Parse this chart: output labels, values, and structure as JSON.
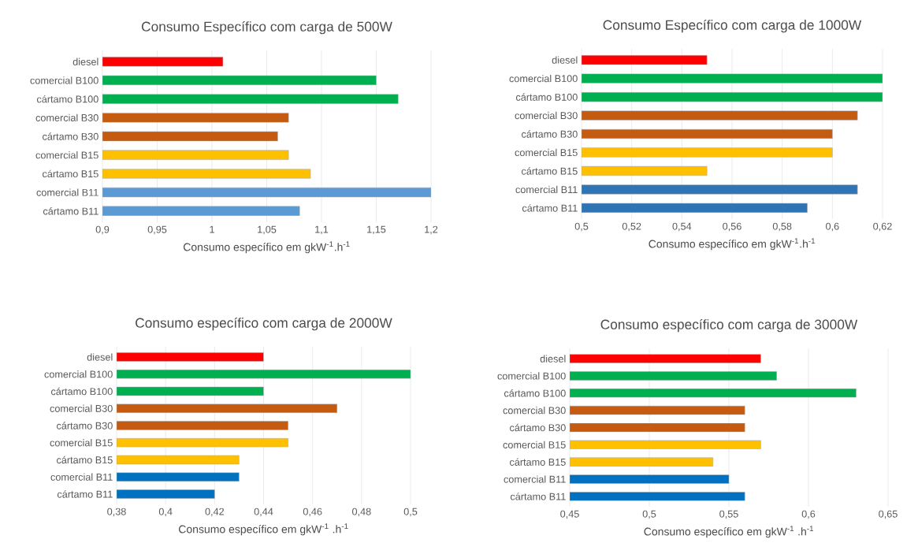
{
  "chart_data": [
    {
      "type": "bar",
      "orientation": "horizontal",
      "title": "Consumo  Específico com carga de 500W",
      "xlabel": "Consumo específico em gkW$^{-1}$.h$^{-1}$",
      "categories": [
        "diesel",
        "comercial B100",
        "cártamo B100",
        "comercial B30",
        "cártamo B30",
        "comercial B15",
        "cártamo B15",
        "comercial B11",
        "cártamo B11"
      ],
      "values": [
        1.01,
        1.15,
        1.17,
        1.07,
        1.06,
        1.07,
        1.09,
        1.2,
        1.08
      ],
      "colors": [
        "#ff0000",
        "#00b050",
        "#00b050",
        "#c55a11",
        "#c55a11",
        "#ffc000",
        "#ffc000",
        "#5b9bd5",
        "#5b9bd5"
      ],
      "xlim": [
        0.9,
        1.2
      ],
      "xticks": [
        {
          "value": 0.9,
          "label": "0,9"
        },
        {
          "value": 0.95,
          "label": "0,95"
        },
        1,
        {
          "value": 1.05,
          "label": "1,05"
        },
        {
          "value": 1.1,
          "label": "1,1"
        },
        {
          "value": 1.15,
          "label": "1,15"
        },
        {
          "value": 1.2,
          "label": "1,2"
        }
      ],
      "grid": "x"
    },
    {
      "type": "bar",
      "orientation": "horizontal",
      "title": "Consumo  Específico com carga de 1000W",
      "xlabel": "Consumo específico em gkW$^{-1}$.h$^{-1}$",
      "categories": [
        "diesel",
        "comercial B100",
        "cártamo B100",
        "comercial B30",
        "cártamo B30",
        "comercial B15",
        "cártamo B15",
        "comercial B11",
        "cártamo B11"
      ],
      "values": [
        0.55,
        0.62,
        0.62,
        0.61,
        0.6,
        0.6,
        0.55,
        0.61,
        0.59
      ],
      "colors": [
        "#ff0000",
        "#00b050",
        "#00b050",
        "#c55a11",
        "#c55a11",
        "#ffc000",
        "#ffc000",
        "#2e75b6",
        "#2e75b6"
      ],
      "xlim": [
        0.5,
        0.62
      ],
      "xticks": [
        {
          "value": 0.5,
          "label": "0,5"
        },
        {
          "value": 0.52,
          "label": "0,52"
        },
        {
          "value": 0.54,
          "label": "0,54"
        },
        {
          "value": 0.56,
          "label": "0,56"
        },
        {
          "value": 0.58,
          "label": "0,58"
        },
        {
          "value": 0.6,
          "label": "0,6"
        },
        {
          "value": 0.62,
          "label": "0,62"
        }
      ],
      "grid": "x"
    },
    {
      "type": "bar",
      "orientation": "horizontal",
      "title": "Consumo  específico com carga de 2000W",
      "xlabel": "Consumo específico em gkW$^{-1}$ .h$^{-1}$",
      "categories": [
        "diesel",
        "comercial B100",
        "cártamo B100",
        "comercial B30",
        "cártamo B30",
        "comercial B15",
        "cártamo B15",
        "comercial B11",
        "cártamo B11"
      ],
      "values": [
        0.44,
        0.5,
        0.44,
        0.47,
        0.45,
        0.45,
        0.43,
        0.43,
        0.42
      ],
      "colors": [
        "#ff0000",
        "#00b050",
        "#00b050",
        "#c55a11",
        "#c55a11",
        "#ffc000",
        "#ffc000",
        "#0070c0",
        "#0070c0"
      ],
      "xlim": [
        0.38,
        0.5
      ],
      "xticks": [
        {
          "value": 0.38,
          "label": "0,38"
        },
        {
          "value": 0.4,
          "label": "0,4"
        },
        {
          "value": 0.42,
          "label": "0,42"
        },
        {
          "value": 0.44,
          "label": "0,44"
        },
        {
          "value": 0.46,
          "label": "0,46"
        },
        {
          "value": 0.48,
          "label": "0,48"
        },
        {
          "value": 0.5,
          "label": "0,5"
        }
      ],
      "grid": "x"
    },
    {
      "type": "bar",
      "orientation": "horizontal",
      "title": "Consumo  específico com carga de 3000W",
      "xlabel": "Consumo específico em gkW$^{-1}$ .h$^{-1}$",
      "categories": [
        "diesel",
        "comercial B100",
        "cártamo B100",
        "comercial B30",
        "cártamo B30",
        "comercial B15",
        "cártamo B15",
        "comercial B11",
        "cártamo B11"
      ],
      "values": [
        0.57,
        0.58,
        0.63,
        0.56,
        0.56,
        0.57,
        0.54,
        0.55,
        0.56
      ],
      "colors": [
        "#ff0000",
        "#00b050",
        "#00b050",
        "#c55a11",
        "#c55a11",
        "#ffc000",
        "#ffc000",
        "#0070c0",
        "#0070c0"
      ],
      "xlim": [
        0.45,
        0.65
      ],
      "xticks": [
        {
          "value": 0.45,
          "label": "0,45"
        },
        {
          "value": 0.5,
          "label": "0,5"
        },
        {
          "value": 0.55,
          "label": "0,55"
        },
        {
          "value": 0.6,
          "label": "0,6"
        },
        {
          "value": 0.65,
          "label": "0,65"
        }
      ],
      "grid": "x"
    }
  ]
}
